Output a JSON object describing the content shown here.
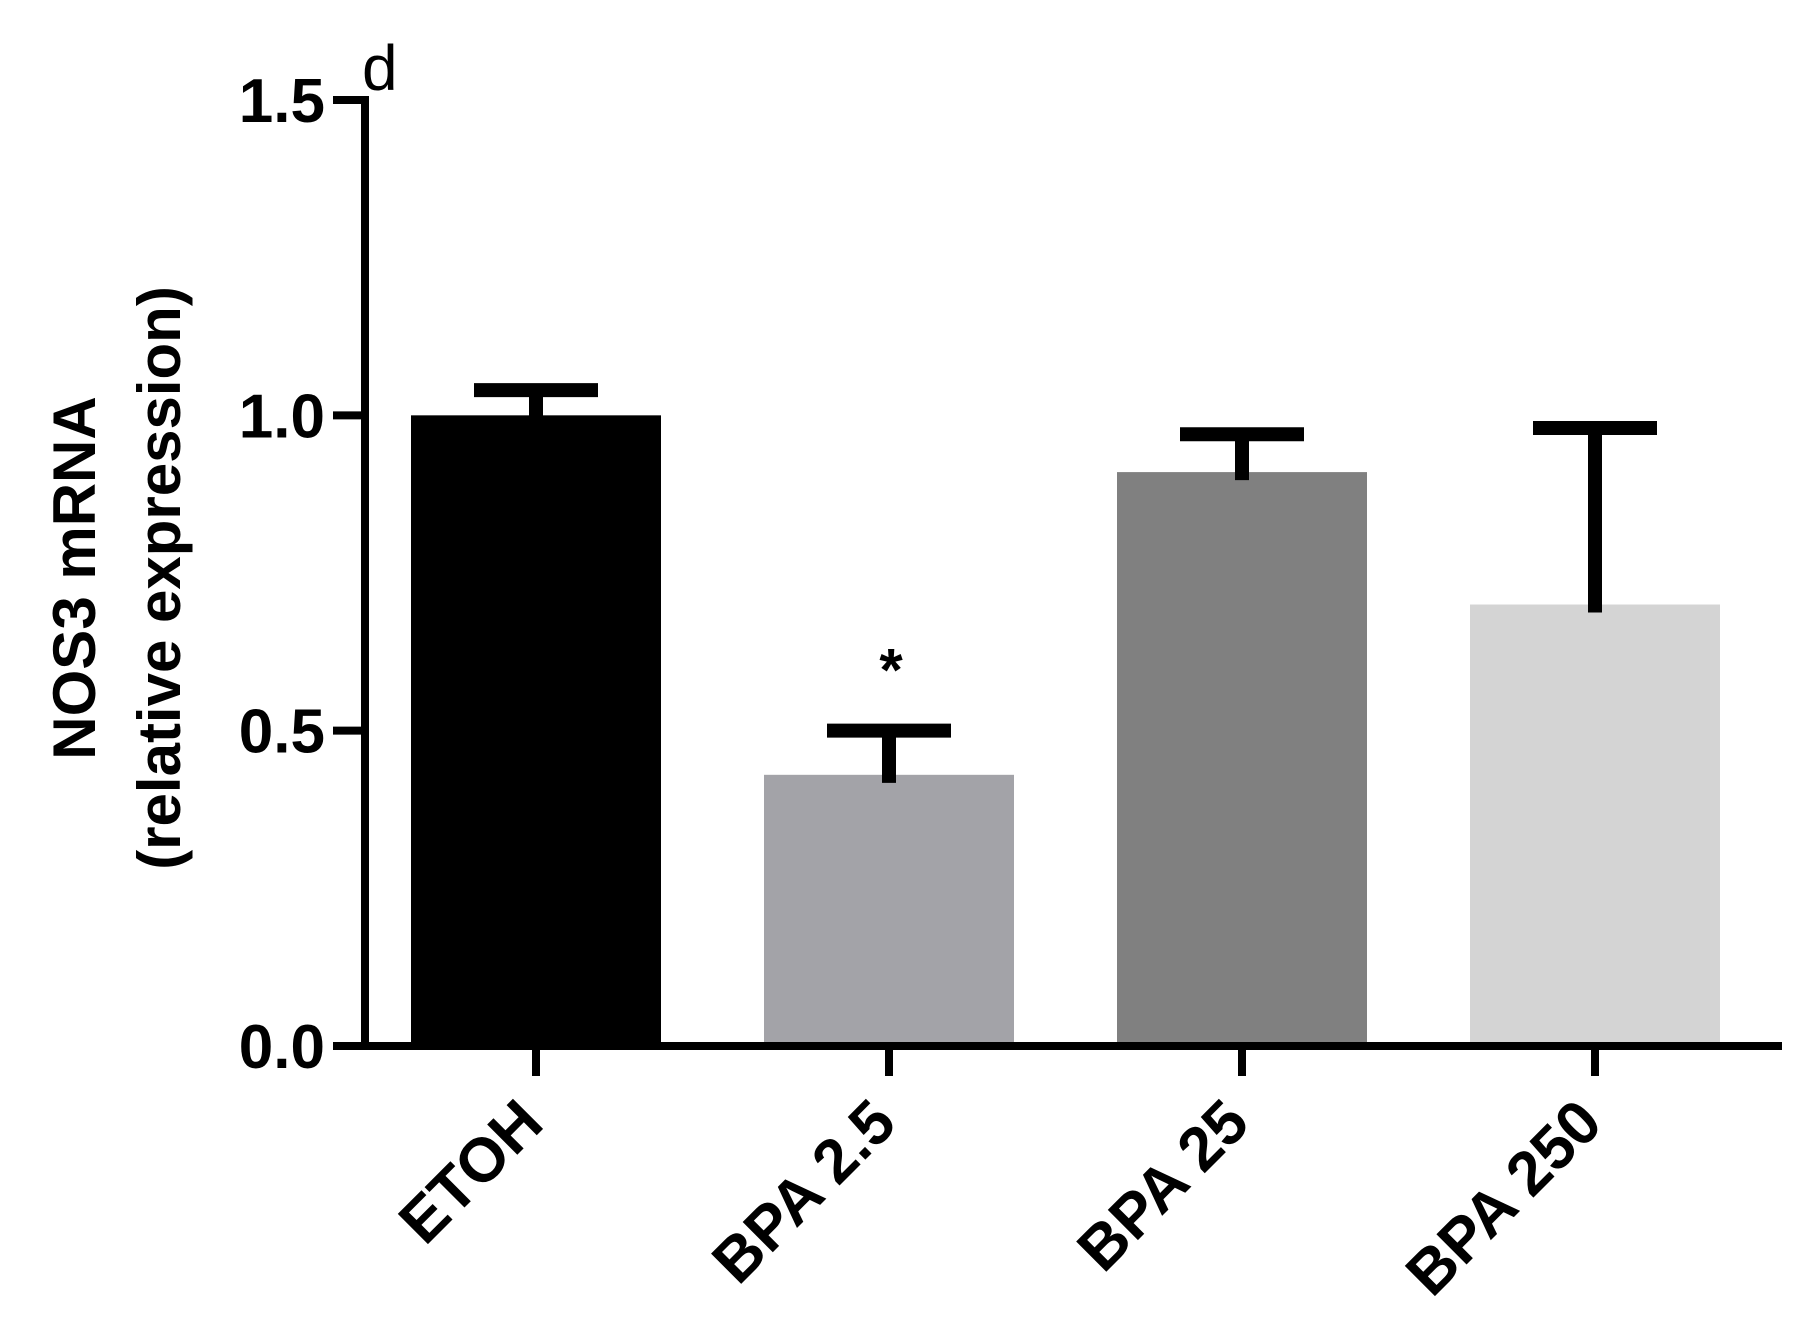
{
  "panel_label": "d",
  "chart_data": {
    "type": "bar",
    "title": "",
    "xlabel": "",
    "ylabel_line1": "NOS3 mRNA",
    "ylabel_line2": "(relative expression)",
    "ylim": [
      0,
      1.5
    ],
    "yticks": [
      0.0,
      0.5,
      1.0,
      1.5
    ],
    "ytick_labels": [
      "0.0",
      "0.5",
      "1.0",
      "1.5"
    ],
    "categories": [
      "ETOH",
      "BPA 2.5",
      "BPA 25",
      "BPA 250"
    ],
    "values": [
      1.0,
      0.43,
      0.91,
      0.7
    ],
    "errors": [
      0.04,
      0.07,
      0.06,
      0.28
    ],
    "colors": [
      "#000000",
      "#a3a3a8",
      "#808080",
      "#d4d4d4"
    ],
    "annotations": [
      "",
      "*",
      "",
      ""
    ],
    "grid": false,
    "legend": "none"
  }
}
